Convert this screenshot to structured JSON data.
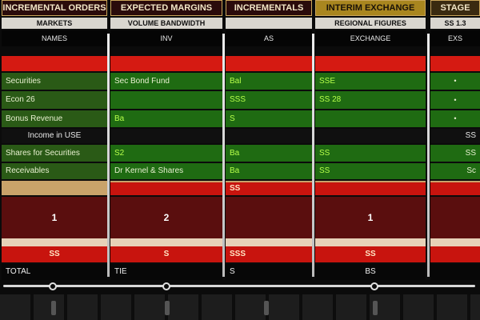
{
  "header": {
    "titles": [
      "INCREMENTAL ORDERS",
      "EXPECTED MARGINS",
      "INCREMENTALS",
      "INTERIM EXCHANGE",
      "STAGE"
    ],
    "subtitles": [
      "MARKETS",
      "VOLUME BANDWIDTH",
      "",
      "REGIONAL FIGURES",
      "SS 1.3"
    ],
    "columns": [
      "NAMES",
      "INV",
      "AS",
      "EXCHANGE",
      "EXS"
    ]
  },
  "rows": [
    {
      "style": "red",
      "cells": [
        "",
        "",
        "",
        "",
        ""
      ]
    },
    {
      "style": "green",
      "cells": [
        "Securities",
        "Sec Bond Fund",
        "Bal",
        "SSE",
        "•"
      ]
    },
    {
      "style": "green",
      "cells": [
        "Econ 26",
        "",
        "SSS",
        "SS 28",
        "•"
      ]
    },
    {
      "style": "green",
      "cells": [
        "Bonus Revenue",
        "Ba",
        "S",
        "",
        "•"
      ]
    },
    {
      "style": "black",
      "cells": [
        "Income in USE",
        "",
        "",
        "",
        "SS"
      ]
    },
    {
      "style": "green",
      "cells": [
        "Shares for Securities",
        "S2",
        "Ba",
        "SS",
        "SS"
      ]
    },
    {
      "style": "green",
      "cells": [
        "Receivables",
        "Dr Kernel & Shares",
        "Ba",
        "SS",
        "Sc"
      ]
    },
    {
      "style": "tan",
      "cells": [
        "",
        "",
        "",
        "",
        ""
      ]
    },
    {
      "style": "band",
      "cells": [
        "",
        "",
        "SS",
        "",
        ""
      ]
    },
    {
      "style": "maroon",
      "cells": [
        "1",
        "2",
        "",
        "1",
        ""
      ]
    },
    {
      "style": "pale",
      "cells": [
        "",
        "",
        "",
        "",
        ""
      ]
    },
    {
      "style": "band",
      "cells": [
        "SS",
        "S",
        "SSS",
        "SS",
        ""
      ]
    },
    {
      "style": "tot",
      "cells": [
        "TOTAL",
        "TIE",
        "S",
        "BS",
        ""
      ]
    }
  ],
  "colors": {
    "red": "#d51a12",
    "green": "#1f6b12",
    "maroon": "#5a0e0e",
    "tan": "#c9a36a",
    "gold": "#a9861f"
  },
  "icons": [
    "scroll-knob-icon"
  ]
}
